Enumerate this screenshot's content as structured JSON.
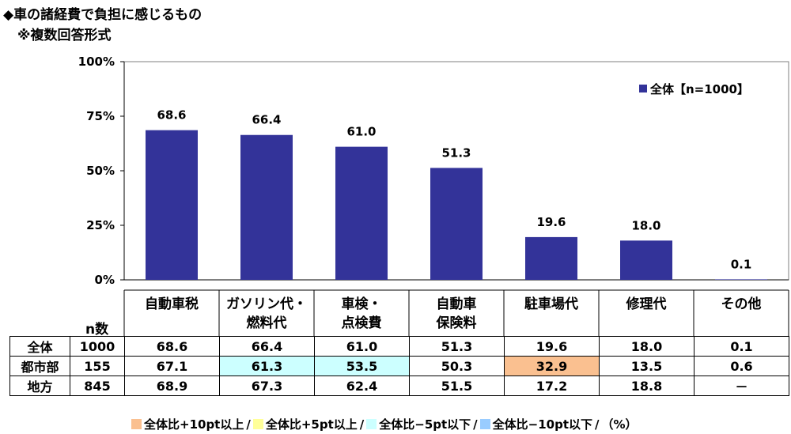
{
  "title": "◆車の諸経費で負担に感じるもの",
  "subtitle": "※複数回答形式",
  "colors": {
    "bar": "#333399",
    "plus10": "#fac090",
    "plus5": "#ffff99",
    "minus5": "#ccffff",
    "minus10": "#99ccff"
  },
  "chart_data": {
    "type": "bar",
    "categories": [
      "自動車税",
      "ガソリン代・燃料代",
      "車検・点検費",
      "自動車保険料",
      "駐車場代",
      "修理代",
      "その他"
    ],
    "series": [
      {
        "name": "全体【n=1000】",
        "values": [
          68.6,
          66.4,
          61.0,
          51.3,
          19.6,
          18.0,
          0.1
        ]
      }
    ],
    "value_labels": [
      "68.6",
      "66.4",
      "61.0",
      "51.3",
      "19.6",
      "18.0",
      "0.1"
    ],
    "ylim": [
      0,
      100
    ],
    "yticks": [
      "0%",
      "25%",
      "50%",
      "75%",
      "100%"
    ],
    "legend": "top-right",
    "grid": false
  },
  "category_labels": [
    [
      "自動車税"
    ],
    [
      "ガソリン代・",
      "燃料代"
    ],
    [
      "車検・",
      "点検費"
    ],
    [
      "自動車",
      "保険料"
    ],
    [
      "駐車場代"
    ],
    [
      "修理代"
    ],
    [
      "その他"
    ]
  ],
  "n_header": "n数",
  "table": {
    "rows": [
      {
        "label": "全体",
        "n": "1000",
        "values": [
          "68.6",
          "66.4",
          "61.0",
          "51.3",
          "19.6",
          "18.0",
          "0.1"
        ],
        "highlight": [
          "",
          "",
          "",
          "",
          "",
          "",
          ""
        ]
      },
      {
        "label": "都市部",
        "n": "155",
        "values": [
          "67.1",
          "61.3",
          "53.5",
          "50.3",
          "32.9",
          "13.5",
          "0.6"
        ],
        "highlight": [
          "",
          "minus5",
          "minus5",
          "",
          "plus10",
          "",
          ""
        ]
      },
      {
        "label": "地方",
        "n": "845",
        "values": [
          "68.9",
          "67.3",
          "62.4",
          "51.5",
          "17.2",
          "18.8",
          "－"
        ],
        "highlight": [
          "",
          "",
          "",
          "",
          "",
          "",
          ""
        ]
      }
    ]
  },
  "highlight_legend": [
    {
      "key": "plus10",
      "label": "全体比+10pt以上"
    },
    {
      "key": "plus5",
      "label": "全体比+5pt以上"
    },
    {
      "key": "minus5",
      "label": "全体比−5pt以下"
    },
    {
      "key": "minus10",
      "label": "全体比−10pt以下"
    }
  ],
  "unit_note": "（%）"
}
